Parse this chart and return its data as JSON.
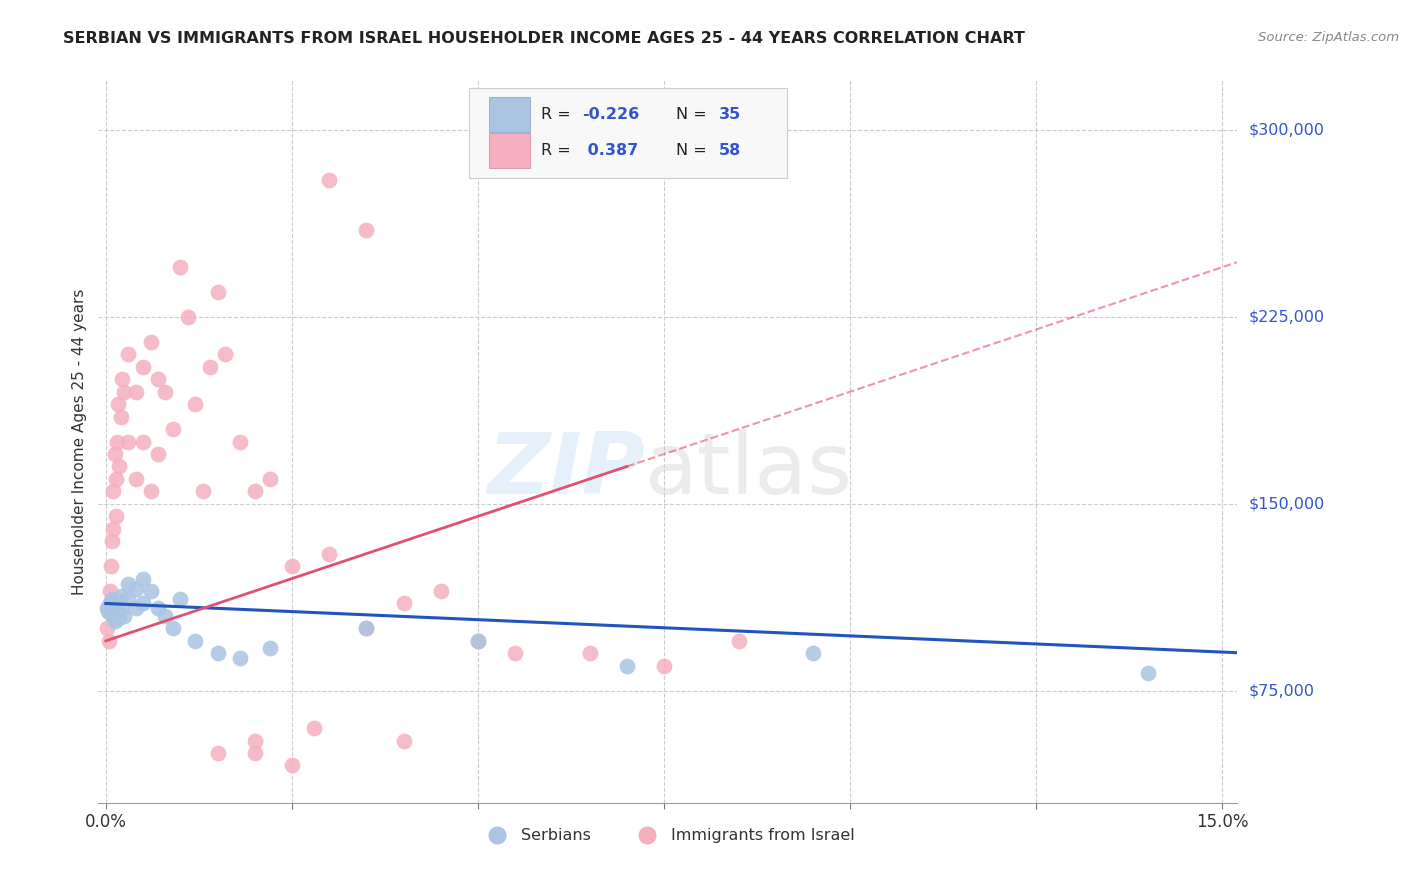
{
  "title": "SERBIAN VS IMMIGRANTS FROM ISRAEL HOUSEHOLDER INCOME AGES 25 - 44 YEARS CORRELATION CHART",
  "source": "Source: ZipAtlas.com",
  "ylabel": "Householder Income Ages 25 - 44 years",
  "ytick_labels": [
    "$75,000",
    "$150,000",
    "$225,000",
    "$300,000"
  ],
  "ytick_values": [
    75000,
    150000,
    225000,
    300000
  ],
  "ylim": [
    30000,
    320000
  ],
  "xlim": [
    -0.001,
    0.152
  ],
  "legend_bottom_label1": "Serbians",
  "legend_bottom_label2": "Immigrants from Israel",
  "serbian_color": "#aac4e2",
  "israel_color": "#f5b0c0",
  "serbian_line_color": "#2255bb",
  "israel_line_color": "#e05070",
  "serbia_intercept": 110000,
  "serbia_slope": -130000,
  "israel_intercept": 95000,
  "israel_slope": 1000000,
  "serbian_scatter_x": [
    0.0002,
    0.0003,
    0.0005,
    0.0006,
    0.0008,
    0.001,
    0.001,
    0.0012,
    0.0013,
    0.0015,
    0.0016,
    0.0018,
    0.002,
    0.0022,
    0.0025,
    0.003,
    0.003,
    0.004,
    0.004,
    0.005,
    0.005,
    0.006,
    0.007,
    0.008,
    0.009,
    0.01,
    0.012,
    0.015,
    0.018,
    0.022,
    0.035,
    0.05,
    0.07,
    0.095,
    0.14
  ],
  "serbian_scatter_y": [
    108000,
    107000,
    110000,
    106000,
    112000,
    105000,
    108000,
    103000,
    109000,
    107000,
    111000,
    104000,
    113000,
    108000,
    105000,
    118000,
    112000,
    108000,
    116000,
    110000,
    120000,
    115000,
    108000,
    105000,
    100000,
    112000,
    95000,
    90000,
    88000,
    92000,
    100000,
    95000,
    85000,
    90000,
    82000
  ],
  "israel_scatter_x": [
    0.0002,
    0.0003,
    0.0004,
    0.0005,
    0.0006,
    0.0007,
    0.0008,
    0.001,
    0.001,
    0.0012,
    0.0013,
    0.0014,
    0.0015,
    0.0016,
    0.0018,
    0.002,
    0.0022,
    0.0025,
    0.003,
    0.003,
    0.004,
    0.004,
    0.005,
    0.005,
    0.006,
    0.006,
    0.007,
    0.007,
    0.008,
    0.009,
    0.01,
    0.011,
    0.012,
    0.013,
    0.014,
    0.016,
    0.018,
    0.02,
    0.022,
    0.025,
    0.028,
    0.03,
    0.035,
    0.04,
    0.045,
    0.05,
    0.055,
    0.065,
    0.075,
    0.085,
    0.03,
    0.035,
    0.04,
    0.015,
    0.02,
    0.025,
    0.015,
    0.02
  ],
  "israel_scatter_y": [
    100000,
    108000,
    95000,
    115000,
    110000,
    125000,
    135000,
    140000,
    155000,
    170000,
    145000,
    160000,
    175000,
    190000,
    165000,
    185000,
    200000,
    195000,
    175000,
    210000,
    160000,
    195000,
    175000,
    205000,
    155000,
    215000,
    170000,
    200000,
    195000,
    180000,
    245000,
    225000,
    190000,
    155000,
    205000,
    210000,
    175000,
    155000,
    160000,
    125000,
    60000,
    130000,
    100000,
    110000,
    115000,
    95000,
    90000,
    90000,
    85000,
    95000,
    280000,
    260000,
    55000,
    235000,
    50000,
    45000,
    50000,
    55000
  ]
}
